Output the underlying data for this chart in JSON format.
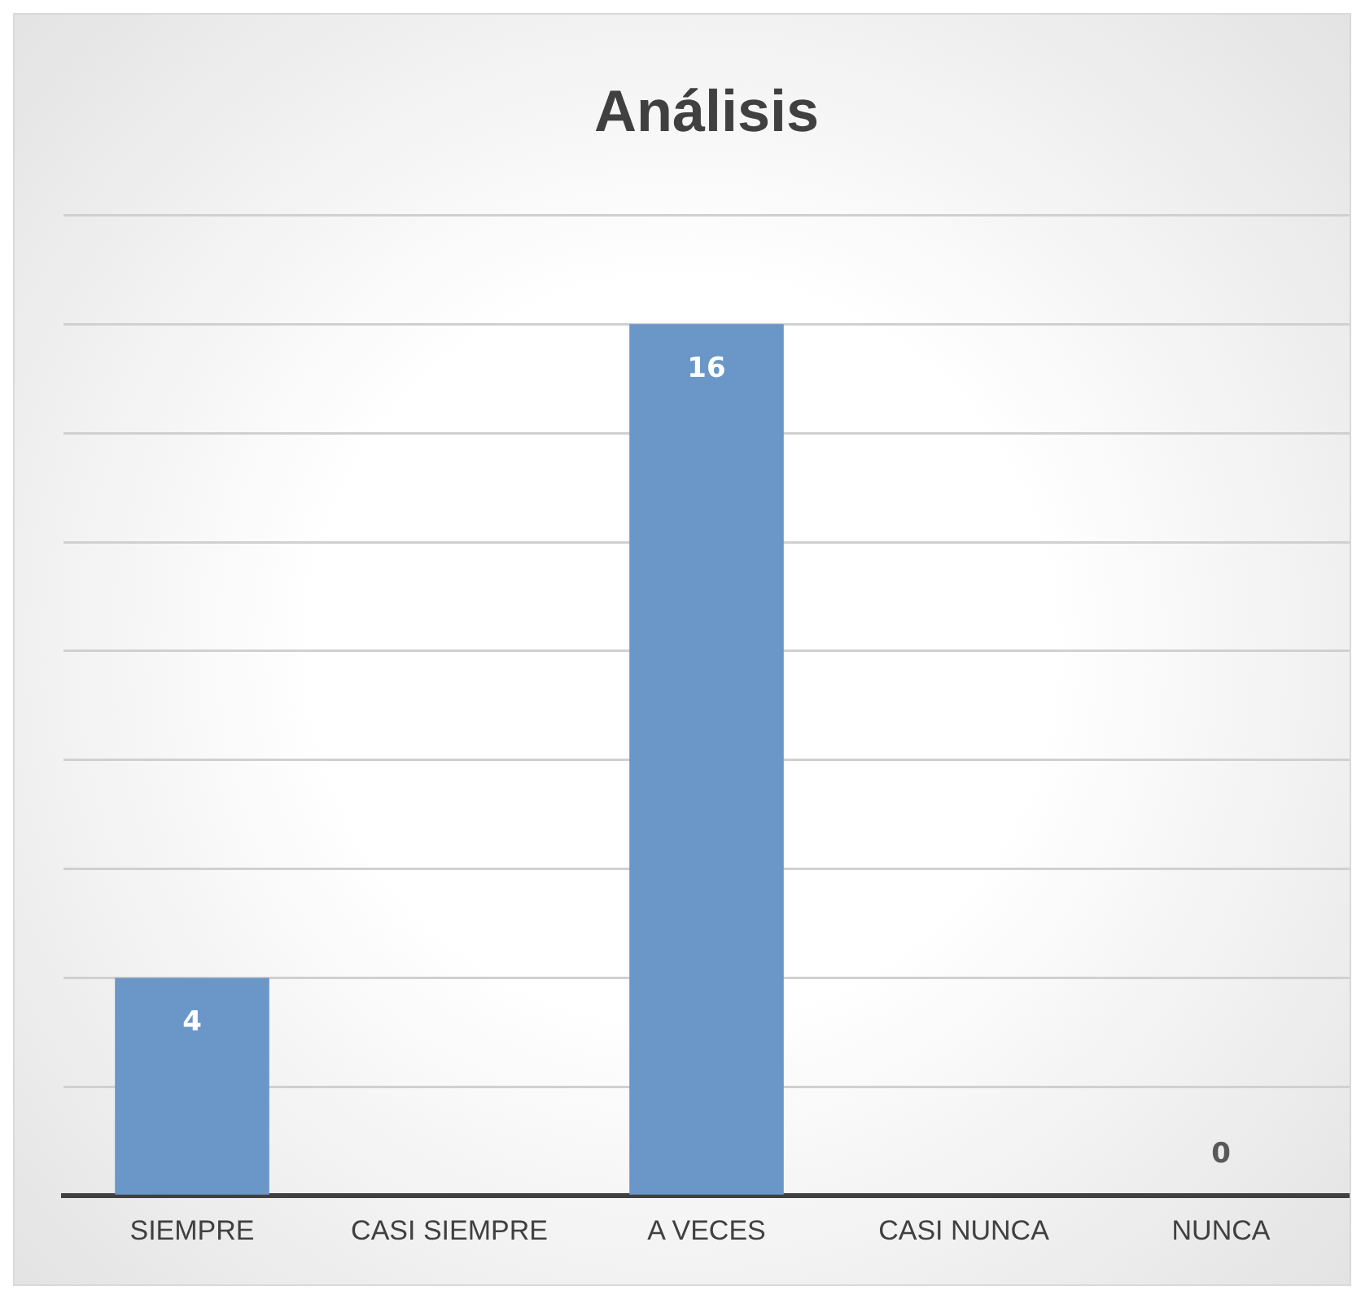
{
  "chart_data": {
    "type": "bar",
    "title": "Análisis",
    "categories": [
      "SIEMPRE",
      "CASI SIEMPRE",
      "A VECES",
      "CASI NUNCA",
      "NUNCA"
    ],
    "values": [
      4,
      null,
      16,
      null,
      0
    ],
    "color": "#6a96c8",
    "ylim": [
      0,
      18
    ],
    "yticks": [
      {
        "value": 0,
        "label": null
      },
      {
        "value": 2,
        "label": null
      },
      {
        "value": 4,
        "label": null
      },
      {
        "value": 6,
        "label": null
      },
      {
        "value": 8,
        "label": null
      },
      {
        "value": 10,
        "label": null
      },
      {
        "value": 12,
        "label": null
      },
      {
        "value": 14,
        "label": null
      },
      {
        "value": 16,
        "label": null
      },
      {
        "value": 18,
        "label": null
      }
    ],
    "tick_labels": "x",
    "grid": "y",
    "data_labels": true,
    "legend": false
  }
}
